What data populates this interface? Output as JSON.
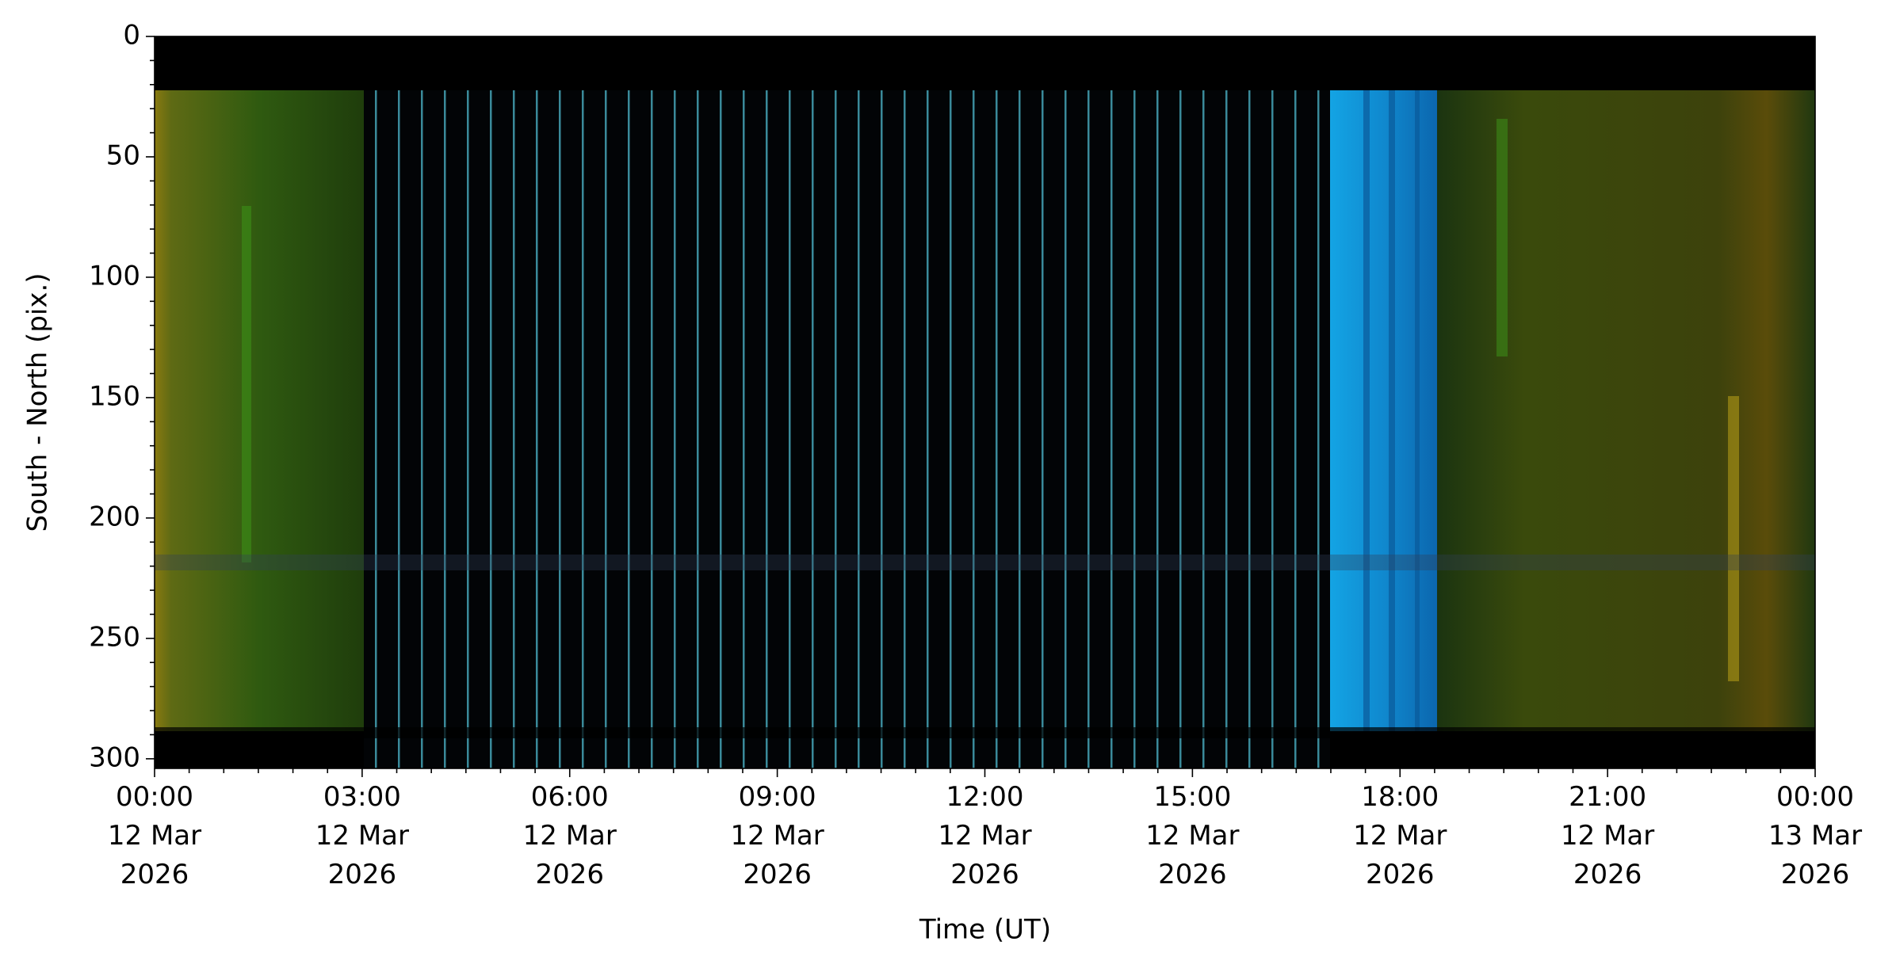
{
  "chart_data": {
    "type": "keogram",
    "xlabel": "Time (UT)",
    "ylabel": "South - North (pix.)",
    "xlim": [
      "2026-03-12T00:00",
      "2026-03-13T00:00"
    ],
    "xticks": [
      {
        "value": "2026-03-12T00:00",
        "label": [
          "00:00",
          "12 Mar",
          "2026"
        ]
      },
      {
        "value": "2026-03-12T03:00",
        "label": [
          "03:00",
          "12 Mar",
          "2026"
        ]
      },
      {
        "value": "2026-03-12T06:00",
        "label": [
          "06:00",
          "12 Mar",
          "2026"
        ]
      },
      {
        "value": "2026-03-12T09:00",
        "label": [
          "09:00",
          "12 Mar",
          "2026"
        ]
      },
      {
        "value": "2026-03-12T12:00",
        "label": [
          "12:00",
          "12 Mar",
          "2026"
        ]
      },
      {
        "value": "2026-03-12T15:00",
        "label": [
          "15:00",
          "12 Mar",
          "2026"
        ]
      },
      {
        "value": "2026-03-12T18:00",
        "label": [
          "18:00",
          "12 Mar",
          "2026"
        ]
      },
      {
        "value": "2026-03-12T21:00",
        "label": [
          "21:00",
          "12 Mar",
          "2026"
        ]
      },
      {
        "value": "2026-03-13T00:00",
        "label": [
          "00:00",
          "13 Mar",
          "2026"
        ]
      }
    ],
    "ylim": [
      304,
      0
    ],
    "yticks": [
      0,
      50,
      100,
      150,
      200,
      250,
      300
    ]
  }
}
